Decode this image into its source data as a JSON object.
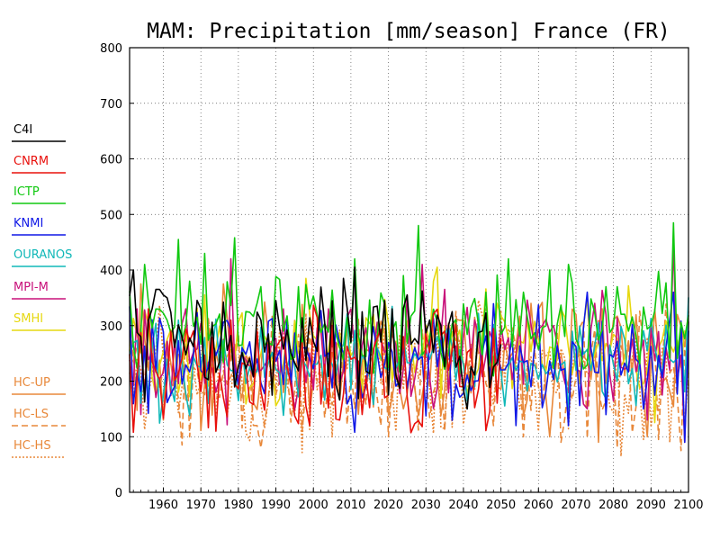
{
  "chart_data": {
    "type": "line",
    "title": "MAM: Precipitation [mm/season] France (FR)",
    "xlabel": "",
    "ylabel": "",
    "xlim": [
      1951,
      2100
    ],
    "ylim": [
      0,
      800
    ],
    "x_ticks": [
      1960,
      1970,
      1980,
      1990,
      2000,
      2010,
      2020,
      2030,
      2040,
      2050,
      2060,
      2070,
      2080,
      2090,
      2100
    ],
    "y_ticks": [
      0,
      100,
      200,
      300,
      400,
      500,
      600,
      700,
      800
    ],
    "grid": true,
    "legend_position": "left",
    "series": [
      {
        "name": "C4I",
        "color": "#000000",
        "style": "solid",
        "years": [
          1951,
          2050
        ],
        "mean": 255,
        "spread": 55,
        "seed": 11,
        "peaks": [
          [
            1952,
            400
          ],
          [
            1957,
            330
          ],
          [
            1958,
            365
          ],
          [
            1959,
            365
          ],
          [
            1960,
            355
          ],
          [
            1961,
            350
          ],
          [
            1970,
            330
          ],
          [
            1990,
            345
          ],
          [
            2005,
            345
          ],
          [
            2008,
            385
          ],
          [
            2011,
            405
          ],
          [
            2017,
            335
          ],
          [
            2019,
            345
          ],
          [
            2021,
            330
          ],
          [
            2025,
            355
          ],
          [
            2031,
            310
          ],
          [
            2034,
            300
          ],
          [
            2036,
            300
          ],
          [
            2045,
            290
          ],
          [
            2041,
            150
          ]
        ]
      },
      {
        "name": "CNRM",
        "color": "#e8100c",
        "style": "solid",
        "years": [
          1951,
          2050
        ],
        "mean": 230,
        "spread": 58,
        "seed": 23,
        "peaks": [
          [
            1952,
            108
          ],
          [
            1956,
            330
          ],
          [
            1962,
            290
          ],
          [
            1968,
            290
          ],
          [
            1974,
            110
          ],
          [
            1978,
            310
          ],
          [
            1985,
            290
          ],
          [
            1990,
            260
          ],
          [
            2003,
            230
          ],
          [
            2007,
            130
          ],
          [
            2013,
            140
          ],
          [
            2024,
            280
          ],
          [
            2029,
            118
          ],
          [
            2035,
            290
          ],
          [
            2040,
            190
          ],
          [
            2047,
            145
          ]
        ]
      },
      {
        "name": "ICTP",
        "color": "#10c810",
        "style": "solid",
        "years": [
          1951,
          2100
        ],
        "mean": 295,
        "spread": 40,
        "seed": 37,
        "peaks": [
          [
            1955,
            410
          ],
          [
            1964,
            455
          ],
          [
            1971,
            430
          ],
          [
            1979,
            458
          ],
          [
            1986,
            370
          ],
          [
            1996,
            370
          ],
          [
            2011,
            420
          ],
          [
            2028,
            480
          ],
          [
            2052,
            420
          ],
          [
            2063,
            400
          ],
          [
            2068,
            410
          ],
          [
            2078,
            370
          ],
          [
            2081,
            370
          ],
          [
            2096,
            485
          ],
          [
            1967,
            380
          ],
          [
            2024,
            390
          ],
          [
            2056,
            360
          ],
          [
            2046,
            360
          ],
          [
            2090,
            300
          ]
        ]
      },
      {
        "name": "KNMI",
        "color": "#1018e6",
        "style": "solid",
        "years": [
          1951,
          2100
        ],
        "mean": 240,
        "spread": 48,
        "seed": 41,
        "peaks": [
          [
            1953,
            215
          ],
          [
            1965,
            195
          ],
          [
            1975,
            265
          ],
          [
            1991,
            255
          ],
          [
            2008,
            250
          ],
          [
            2027,
            260
          ],
          [
            2038,
            195
          ],
          [
            2054,
            120
          ],
          [
            2068,
            120
          ],
          [
            2073,
            360
          ],
          [
            2088,
            150
          ],
          [
            2096,
            360
          ],
          [
            2099,
            90
          ],
          [
            2023,
            200
          ],
          [
            2014,
            190
          ]
        ]
      },
      {
        "name": "OURANOS",
        "color": "#10b8b8",
        "style": "solid",
        "years": [
          1951,
          2100
        ],
        "mean": 238,
        "spread": 46,
        "seed": 53,
        "peaks": [
          [
            1954,
            160
          ],
          [
            1960,
            175
          ],
          [
            1972,
            160
          ],
          [
            1980,
            165
          ],
          [
            1993,
            220
          ],
          [
            2006,
            210
          ],
          [
            2020,
            220
          ],
          [
            2045,
            240
          ],
          [
            2061,
            230
          ],
          [
            2080,
            230
          ],
          [
            2093,
            210
          ]
        ]
      },
      {
        "name": "MPI-M",
        "color": "#c8107a",
        "style": "solid",
        "years": [
          1951,
          2100
        ],
        "mean": 245,
        "spread": 50,
        "seed": 67,
        "peaks": [
          [
            1954,
            140
          ],
          [
            1966,
            330
          ],
          [
            1978,
            420
          ],
          [
            1992,
            330
          ],
          [
            2004,
            330
          ],
          [
            2010,
            330
          ],
          [
            2029,
            410
          ],
          [
            2043,
            310
          ],
          [
            2061,
            300
          ],
          [
            2078,
            320
          ],
          [
            2089,
            130
          ],
          [
            2096,
            450
          ],
          [
            2099,
            90
          ],
          [
            2075,
            340
          ]
        ]
      },
      {
        "name": "SMHI",
        "color": "#e6d810",
        "style": "solid",
        "years": [
          1951,
          2100
        ],
        "mean": 250,
        "spread": 48,
        "seed": 79,
        "peaks": [
          [
            1969,
            330
          ],
          [
            1998,
            385
          ],
          [
            2033,
            405
          ],
          [
            2032,
            380
          ],
          [
            2049,
            340
          ],
          [
            2066,
            330
          ],
          [
            2072,
            300
          ],
          [
            2090,
            300
          ],
          [
            2054,
            240
          ],
          [
            2083,
            240
          ]
        ]
      },
      {
        "name": "HC-UP",
        "color": "#e8883a",
        "style": "solid",
        "years": [
          1951,
          2100
        ],
        "mean": 245,
        "spread": 56,
        "seed": 83,
        "peaks": [
          [
            1954,
            375
          ],
          [
            1960,
            130
          ],
          [
            1976,
            375
          ],
          [
            1988,
            280
          ],
          [
            2009,
            320
          ],
          [
            2020,
            140
          ],
          [
            2032,
            300
          ],
          [
            2040,
            310
          ],
          [
            2058,
            340
          ],
          [
            2063,
            100
          ],
          [
            2070,
            320
          ],
          [
            2080,
            310
          ],
          [
            2091,
            330
          ],
          [
            2097,
            320
          ],
          [
            2089,
            100
          ],
          [
            2076,
            90
          ]
        ]
      },
      {
        "name": "HC-LS",
        "color": "#e8883a",
        "style": "dashed",
        "years": [
          1951,
          2100
        ],
        "mean": 215,
        "spread": 55,
        "seed": 97,
        "peaks": [
          [
            1965,
            85
          ],
          [
            1967,
            100
          ],
          [
            1986,
            80
          ],
          [
            2020,
            100
          ],
          [
            2035,
            110
          ],
          [
            2048,
            120
          ],
          [
            2056,
            100
          ],
          [
            2066,
            90
          ],
          [
            2081,
            80
          ],
          [
            2092,
            95
          ],
          [
            2098,
            75
          ],
          [
            2072,
            310
          ]
        ]
      },
      {
        "name": "HC-HS",
        "color": "#e8883a",
        "style": "dotted",
        "years": [
          1951,
          2100
        ],
        "mean": 215,
        "spread": 55,
        "seed": 101,
        "peaks": [
          [
            1974,
            140
          ],
          [
            1995,
            140
          ],
          [
            2005,
            100
          ],
          [
            2022,
            110
          ],
          [
            2035,
            115
          ],
          [
            2060,
            110
          ],
          [
            2082,
            65
          ],
          [
            2088,
            95
          ],
          [
            2095,
            90
          ],
          [
            2099,
            120
          ]
        ]
      }
    ]
  }
}
